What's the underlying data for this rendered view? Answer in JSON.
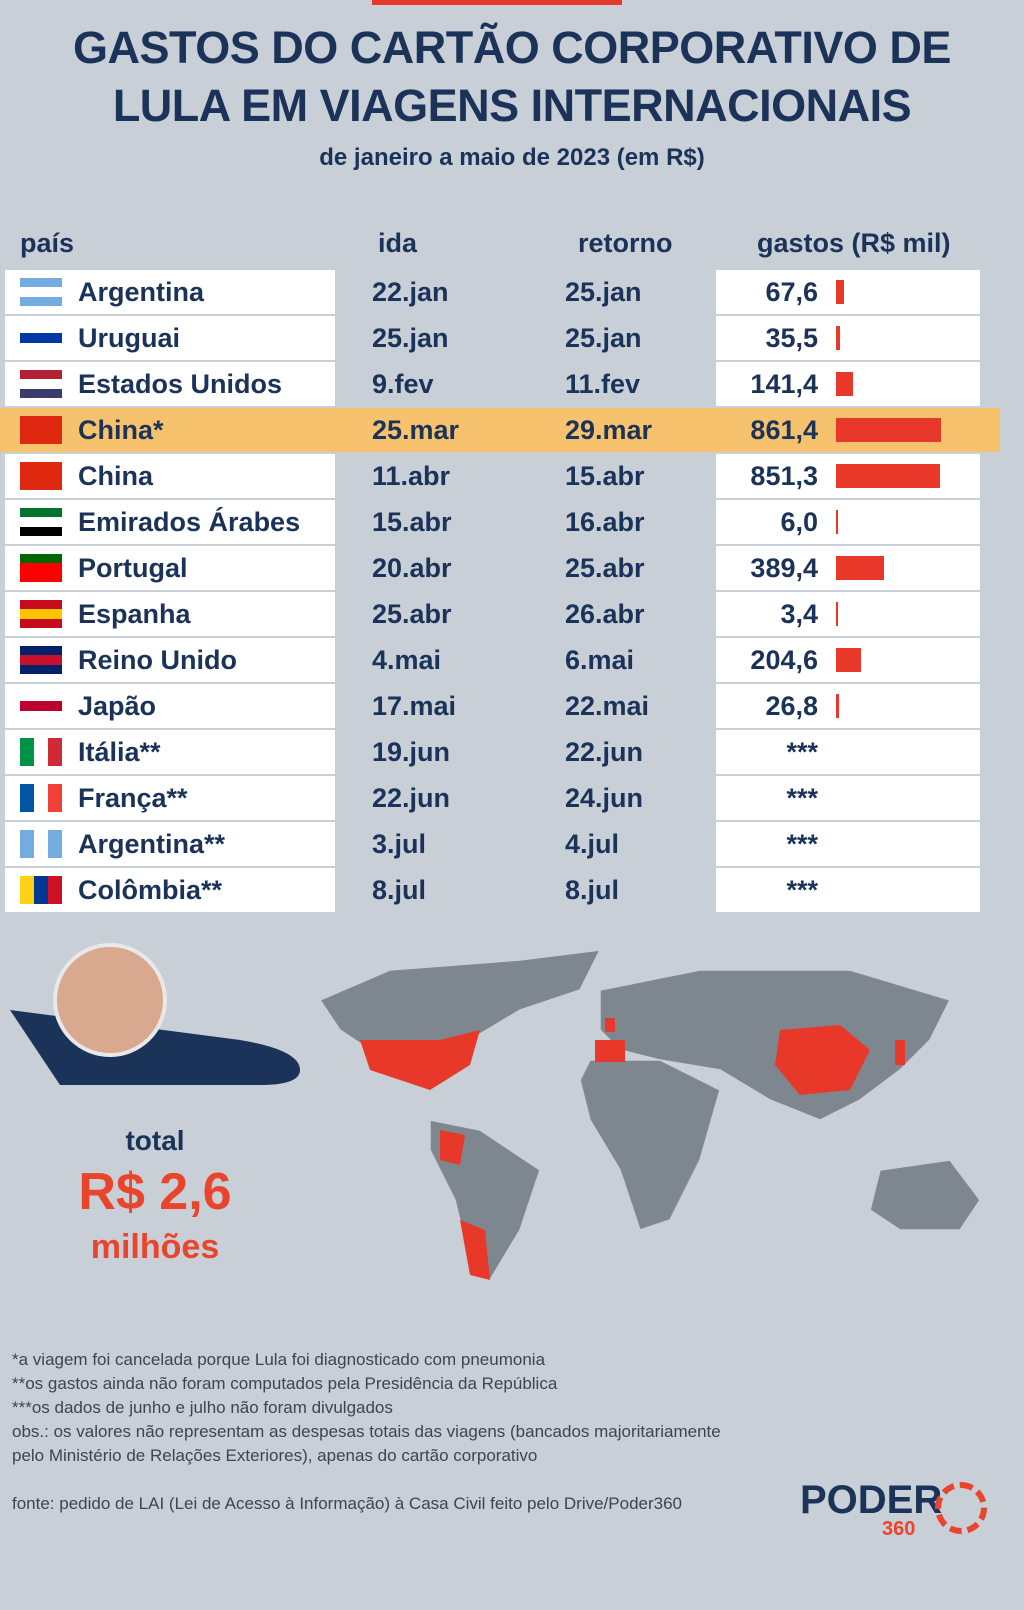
{
  "header": {
    "title_line1": "GASTOS DO CARTÃO CORPORATIVO DE",
    "title_line2": "LULA EM VIAGENS INTERNACIONAIS",
    "subtitle": "de janeiro a maio de 2023 (em R$)"
  },
  "table": {
    "columns": [
      "país",
      "ida",
      "retorno",
      "gastos (R$ mil)"
    ],
    "highlight_row": 3,
    "rows": [
      [
        "Argentina",
        "22.jan",
        "25.jan"
      ],
      [
        "Uruguai",
        "25.jan",
        "25.jan"
      ],
      [
        "Estados Unidos",
        "9.fev",
        "11.fev"
      ],
      [
        "China*",
        "25.mar",
        "29.mar"
      ],
      [
        "China",
        "11.abr",
        "15.abr"
      ],
      [
        "Emirados Árabes",
        "15.abr",
        "16.abr"
      ],
      [
        "Portugal",
        "20.abr",
        "25.abr"
      ],
      [
        "Espanha",
        "25.abr",
        "26.abr"
      ],
      [
        "Reino Unido",
        "4.mai",
        "6.mai"
      ],
      [
        "Japão",
        "17.mai",
        "22.mai"
      ],
      [
        "Itália**",
        "19.jun",
        "22.jun"
      ],
      [
        "França**",
        "22.jun",
        "24.jun"
      ],
      [
        "Argentina**",
        "3.jul",
        "4.jul"
      ],
      [
        "Colômbia**",
        "8.jul",
        "8.jul"
      ]
    ],
    "gastos": {
      "values": [
        67.6,
        35.5,
        141.4,
        861.4,
        851.3,
        6.0,
        389.4,
        3.4,
        204.6,
        26.8,
        null,
        null,
        null,
        null
      ],
      "value_labels": [
        "67,6",
        "35,5",
        "141,4",
        "861,4",
        "851,3",
        "6,0",
        "389,4",
        "3,4",
        "204,6",
        "26,8",
        "***",
        "***",
        "***",
        "***"
      ],
      "color": "#e8382a"
    }
  },
  "total": {
    "label": "total",
    "value": "R$ 2,6",
    "unit": "milhões"
  },
  "footnotes": [
    "*a viagem foi cancelada porque Lula foi diagnosticado com pneumonia",
    "**os gastos ainda não foram computados pela Presidência da República",
    "***os dados de junho e julho não foram divulgados",
    "obs.: os valores não representam as despesas totais das viagens (bancados majoritariamente pelo Ministério de Relações Exteriores), apenas do cartão corporativo",
    "fonte: pedido de LAI (Lei de Acesso à Informação) à Casa Civil feito pelo Drive/Poder360"
  ],
  "logo": {
    "name": "PODER",
    "number": "360"
  }
}
